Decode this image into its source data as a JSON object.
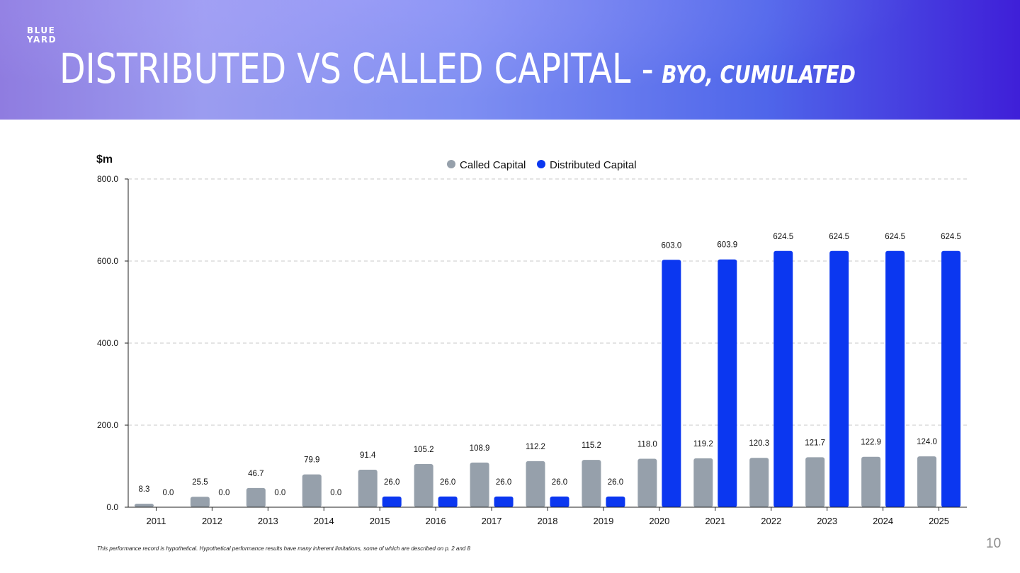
{
  "header": {
    "logo_line1": "BLUE",
    "logo_line2": "YARD",
    "title": "DISTRIBUTED VS CALLED CAPITAL -",
    "title_sub": "BYO, CUMULATED"
  },
  "footer": {
    "footnote": "This performance record is hypothetical. Hypothetical performance results have many inherent limitations, some of which are described on p. 2 and 8",
    "page_number": "10"
  },
  "colors": {
    "called": "#96a0ab",
    "distributed": "#0b37f0",
    "grid": "#c8c8c8",
    "axis": "#222222"
  },
  "chart_data": {
    "type": "bar",
    "unit_label": "$m",
    "title": "",
    "xlabel": "",
    "ylabel": "$m",
    "ylim": [
      0,
      800
    ],
    "yticks": [
      0,
      200,
      400,
      600,
      800
    ],
    "ytick_labels": [
      "0.0",
      "200.0",
      "400.0",
      "600.0",
      "800.0"
    ],
    "grid": true,
    "legend_position": "top-center",
    "categories": [
      "2011",
      "2012",
      "2013",
      "2014",
      "2015",
      "2016",
      "2017",
      "2018",
      "2019",
      "2020",
      "2021",
      "2022",
      "2023",
      "2024",
      "2025"
    ],
    "series": [
      {
        "name": "Called Capital",
        "values": [
          8.3,
          25.5,
          46.7,
          79.9,
          91.4,
          105.2,
          108.9,
          112.2,
          115.2,
          118.0,
          119.2,
          120.3,
          121.7,
          122.9,
          124.0
        ],
        "labels": [
          "8.3",
          "25.5",
          "46.7",
          "79.9",
          "91.4",
          "105.2",
          "108.9",
          "112.2",
          "115.2",
          "118.0",
          "119.2",
          "120.3",
          "121.7",
          "122.9",
          "124.0"
        ]
      },
      {
        "name": "Distributed Capital",
        "values": [
          0.0,
          0.0,
          0.0,
          0.0,
          26.0,
          26.0,
          26.0,
          26.0,
          26.0,
          603.0,
          603.9,
          624.5,
          624.5,
          624.5,
          624.5
        ],
        "labels": [
          "0.0",
          "0.0",
          "0.0",
          "0.0",
          "26.0",
          "26.0",
          "26.0",
          "26.0",
          "26.0",
          "603.0",
          "603.9",
          "624.5",
          "624.5",
          "624.5",
          "624.5"
        ]
      }
    ]
  }
}
